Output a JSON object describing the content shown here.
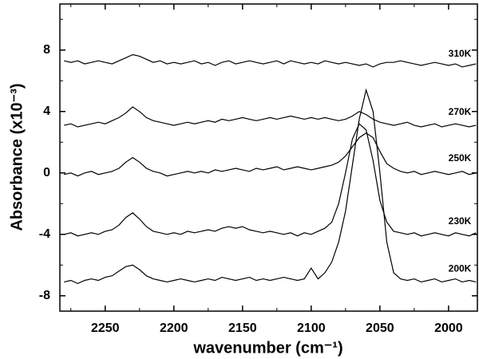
{
  "chart_data": {
    "type": "line",
    "y_label": "Absorbance (x10⁻³)",
    "x_label": "wavenumber (cm⁻¹)",
    "xlim": [
      2283,
      1979
    ],
    "ylim": [
      -9,
      11
    ],
    "xticks": [
      2250,
      2200,
      2150,
      2100,
      2050,
      2000
    ],
    "yticks": [
      -8,
      -4,
      0,
      4,
      8
    ],
    "xminor": [
      2275,
      2225,
      2175,
      2125,
      2075,
      2025
    ],
    "yminor": [
      -6,
      -2,
      2,
      6,
      10
    ],
    "color": "#000000",
    "x": [
      2280,
      2275,
      2270,
      2265,
      2260,
      2255,
      2250,
      2245,
      2240,
      2235,
      2230,
      2225,
      2220,
      2215,
      2210,
      2205,
      2200,
      2195,
      2190,
      2185,
      2180,
      2175,
      2170,
      2165,
      2160,
      2155,
      2150,
      2145,
      2140,
      2135,
      2130,
      2125,
      2120,
      2115,
      2110,
      2105,
      2100,
      2095,
      2090,
      2085,
      2080,
      2075,
      2070,
      2065,
      2060,
      2055,
      2050,
      2045,
      2040,
      2035,
      2030,
      2025,
      2020,
      2015,
      2010,
      2005,
      2000,
      1995,
      1990,
      1985,
      1980
    ],
    "series": [
      {
        "name": "310K",
        "values": [
          7.3,
          7.2,
          7.3,
          7.1,
          7.2,
          7.3,
          7.2,
          7.1,
          7.3,
          7.5,
          7.7,
          7.6,
          7.4,
          7.2,
          7.3,
          7.1,
          7.2,
          7.1,
          7.2,
          7.3,
          7.1,
          7.2,
          7.0,
          7.2,
          7.3,
          7.1,
          7.2,
          7.3,
          7.2,
          7.1,
          7.2,
          7.3,
          7.1,
          7.3,
          7.2,
          7.1,
          7.2,
          7.1,
          7.3,
          7.2,
          7.1,
          7.2,
          7.1,
          7.0,
          7.1,
          6.9,
          7.1,
          7.2,
          7.2,
          7.3,
          7.2,
          7.1,
          7.0,
          7.1,
          7.2,
          7.1,
          7.0,
          7.1,
          6.9,
          7.0,
          7.1
        ]
      },
      {
        "name": "270K",
        "values": [
          3.1,
          3.2,
          3.0,
          3.1,
          3.2,
          3.3,
          3.2,
          3.4,
          3.6,
          3.9,
          4.3,
          4.0,
          3.6,
          3.4,
          3.3,
          3.2,
          3.1,
          3.2,
          3.3,
          3.2,
          3.3,
          3.4,
          3.3,
          3.5,
          3.4,
          3.5,
          3.6,
          3.5,
          3.4,
          3.5,
          3.6,
          3.5,
          3.6,
          3.7,
          3.6,
          3.5,
          3.6,
          3.5,
          3.6,
          3.5,
          3.4,
          3.5,
          3.7,
          4.0,
          3.8,
          3.5,
          3.3,
          3.2,
          3.1,
          3.2,
          3.3,
          3.1,
          3.0,
          3.1,
          3.2,
          3.0,
          3.1,
          3.2,
          3.1,
          3.0,
          3.1
        ]
      },
      {
        "name": "250K",
        "values": [
          -0.1,
          0.0,
          -0.2,
          0.0,
          0.1,
          -0.1,
          0.0,
          0.1,
          0.3,
          0.7,
          1.0,
          0.7,
          0.3,
          0.1,
          0.0,
          -0.2,
          -0.1,
          0.0,
          0.1,
          0.0,
          0.1,
          0.0,
          0.2,
          0.1,
          0.2,
          0.3,
          0.2,
          0.1,
          0.3,
          0.2,
          0.3,
          0.4,
          0.2,
          0.3,
          0.4,
          0.3,
          0.2,
          0.3,
          0.4,
          0.5,
          0.7,
          1.1,
          1.7,
          2.3,
          2.6,
          2.3,
          1.4,
          0.6,
          0.3,
          0.1,
          0.0,
          0.1,
          -0.1,
          0.0,
          0.1,
          0.0,
          -0.1,
          0.0,
          0.1,
          -0.1,
          0.0
        ]
      },
      {
        "name": "230K",
        "values": [
          -4.0,
          -3.9,
          -4.1,
          -4.0,
          -3.9,
          -4.0,
          -3.8,
          -3.7,
          -3.4,
          -2.9,
          -2.6,
          -3.0,
          -3.5,
          -3.8,
          -3.9,
          -4.0,
          -3.9,
          -4.0,
          -3.8,
          -3.9,
          -3.8,
          -3.7,
          -3.8,
          -3.6,
          -3.5,
          -3.6,
          -3.5,
          -3.7,
          -3.8,
          -3.9,
          -3.8,
          -3.9,
          -4.0,
          -3.9,
          -4.1,
          -3.9,
          -4.0,
          -3.8,
          -3.6,
          -3.2,
          -2.0,
          0.0,
          2.2,
          3.2,
          2.8,
          0.8,
          -1.8,
          -3.2,
          -3.8,
          -3.9,
          -4.0,
          -3.9,
          -4.1,
          -4.0,
          -3.9,
          -4.0,
          -4.1,
          -3.9,
          -4.0,
          -4.1,
          -3.9
        ]
      },
      {
        "name": "200K",
        "values": [
          -7.1,
          -7.0,
          -7.2,
          -7.0,
          -6.9,
          -7.0,
          -6.8,
          -6.7,
          -6.4,
          -6.1,
          -6.0,
          -6.3,
          -6.7,
          -6.9,
          -7.0,
          -7.1,
          -7.0,
          -6.9,
          -7.0,
          -7.1,
          -7.0,
          -6.9,
          -7.0,
          -6.8,
          -6.9,
          -7.0,
          -6.9,
          -6.8,
          -7.0,
          -6.9,
          -7.0,
          -6.9,
          -6.8,
          -6.9,
          -7.0,
          -6.9,
          -6.2,
          -6.9,
          -6.5,
          -5.8,
          -4.5,
          -2.5,
          0.5,
          3.5,
          5.4,
          4.0,
          0.0,
          -4.5,
          -6.5,
          -6.9,
          -7.0,
          -6.9,
          -7.1,
          -7.0,
          -6.9,
          -7.1,
          -7.0,
          -6.9,
          -7.1,
          -7.0,
          -7.1
        ]
      }
    ]
  }
}
